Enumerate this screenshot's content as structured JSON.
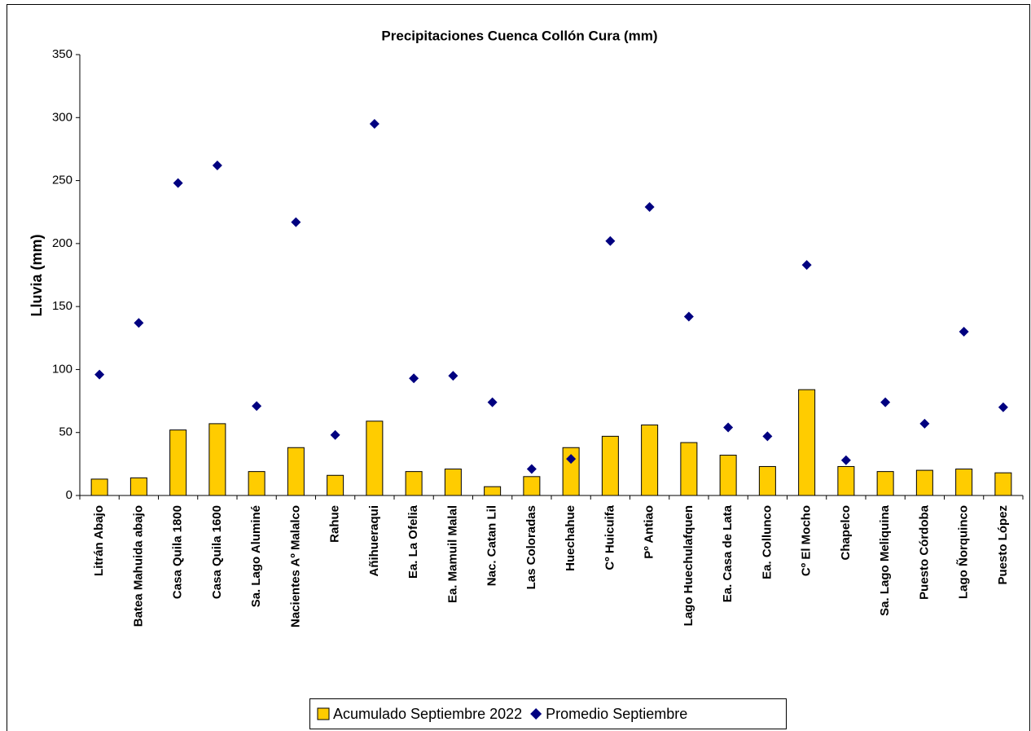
{
  "chart_data": {
    "type": "bar",
    "title": "Precipitaciones Cuenca Collón Cura (mm)",
    "y_label": "Lluvia (mm)",
    "categories": [
      "Litrán Abajo",
      "Batea Mahuida abajo",
      "Casa Quila 1800",
      "Casa Quila 1600",
      "Sa. Lago Aluminé",
      "Nacientes Aº Malalco",
      "Rahue",
      "Añihueraqui",
      "Ea. La Ofelia",
      "Ea. Mamuil Malal",
      "Nac. Catan Lil",
      "Las Coloradas",
      "Huechahue",
      "Cº Huicuifa",
      "Pº Antiao",
      "Lago Huechulafquen",
      "Ea. Casa de Lata",
      "Ea. Collunco",
      "Cº El Mocho",
      "Chapelco",
      "Sa. Lago Meliquina",
      "Puesto Córdoba",
      "Lago Ñorquinco",
      "Puesto López"
    ],
    "series": [
      {
        "name": "Acumulado Septiembre 2022",
        "type": "bar",
        "color": "#ffcc00",
        "values": [
          13,
          14,
          52,
          57,
          19,
          38,
          16,
          59,
          19,
          21,
          7,
          15,
          38,
          47,
          56,
          42,
          32,
          23,
          84,
          23,
          19,
          20,
          21,
          18
        ]
      },
      {
        "name": "Promedio Septiembre",
        "type": "scatter",
        "color": "#000080",
        "values": [
          96,
          137,
          248,
          262,
          71,
          217,
          48,
          295,
          93,
          95,
          74,
          21,
          29,
          202,
          229,
          142,
          54,
          47,
          183,
          28,
          74,
          57,
          130,
          70
        ]
      }
    ],
    "ylim": [
      0,
      350
    ],
    "yticks": [
      0,
      50,
      100,
      150,
      200,
      250,
      300,
      350
    ]
  }
}
